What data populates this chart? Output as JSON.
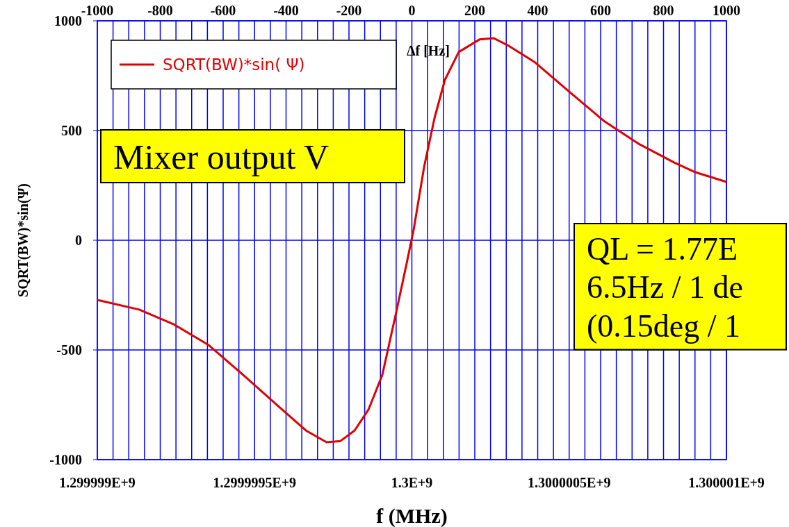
{
  "chart_data": {
    "type": "line",
    "xlabel": "f (MHz)",
    "ylabel": "SQRT(BW)*sin(Ψ)",
    "x2label": "Δf [Hz]",
    "x": [
      1299999000,
      1299999133,
      1299999243,
      1299999354,
      1299999464,
      1299999575,
      1299999663,
      1299999729,
      1299999773,
      1299999818,
      1299999862,
      1299999906,
      1299999950,
      1299999983,
      1300000006,
      1300000039,
      1300000072,
      1300000105,
      1300000149,
      1300000215,
      1300000260,
      1300000304,
      1300000392,
      1300000503,
      1300000613,
      1300000724,
      1300000834,
      1300000901,
      1300001000
    ],
    "series": [
      {
        "name": "SQRT(BW)*sin( Ψ)",
        "color": "#e00000",
        "values": [
          -272,
          -316,
          -383,
          -478,
          -614,
          -756,
          -867,
          -921,
          -915,
          -867,
          -772,
          -614,
          -329,
          -108,
          51,
          335,
          557,
          731,
          858,
          915,
          921,
          889,
          810,
          674,
          541,
          437,
          354,
          310,
          266
        ]
      }
    ],
    "xlim": [
      1299999000,
      1300001000
    ],
    "xticks": [
      {
        "value": 1299999000,
        "label": "1.299999E+9"
      },
      {
        "value": 1299999500,
        "label": "1.2999995E+9"
      },
      {
        "value": 1300000000,
        "label": "1.3E+9"
      },
      {
        "value": 1300000500,
        "label": "1.3000005E+9"
      },
      {
        "value": 1300001000,
        "label": "1.300001E+9"
      }
    ],
    "x2lim": [
      -1000,
      1000
    ],
    "x2ticks": [
      -1000,
      {
        "value": -950,
        "label": null
      },
      {
        "value": -900,
        "label": null
      },
      {
        "value": -850,
        "label": null
      },
      -800,
      {
        "value": -750,
        "label": null
      },
      {
        "value": -700,
        "label": null
      },
      {
        "value": -650,
        "label": null
      },
      -600,
      {
        "value": -550,
        "label": null
      },
      {
        "value": -500,
        "label": null
      },
      {
        "value": -450,
        "label": null
      },
      -400,
      {
        "value": -350,
        "label": null
      },
      {
        "value": -300,
        "label": null
      },
      {
        "value": -250,
        "label": null
      },
      -200,
      {
        "value": -150,
        "label": null
      },
      {
        "value": -100,
        "label": null
      },
      {
        "value": -50,
        "label": null
      },
      0,
      {
        "value": 50,
        "label": null
      },
      {
        "value": 100,
        "label": null
      },
      {
        "value": 150,
        "label": null
      },
      200,
      {
        "value": 250,
        "label": null
      },
      {
        "value": 300,
        "label": null
      },
      {
        "value": 350,
        "label": null
      },
      400,
      {
        "value": 450,
        "label": null
      },
      {
        "value": 500,
        "label": null
      },
      {
        "value": 550,
        "label": null
      },
      600,
      {
        "value": 650,
        "label": null
      },
      {
        "value": 700,
        "label": null
      },
      {
        "value": 750,
        "label": null
      },
      800,
      {
        "value": 850,
        "label": null
      },
      {
        "value": 900,
        "label": null
      },
      {
        "value": 950,
        "label": null
      },
      1000
    ],
    "ylim": [
      -1000,
      1000
    ],
    "yticks": [
      -1000,
      -500,
      0,
      500,
      1000
    ],
    "grid": true,
    "legend": "top left",
    "marker": "none",
    "line_style": "solid",
    "annotations": [
      "Mixer output V",
      "QL = 1.77E\n6.5Hz / 1 de\n(0.15deg / 1"
    ]
  }
}
